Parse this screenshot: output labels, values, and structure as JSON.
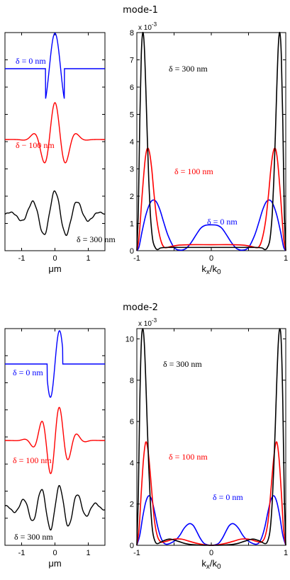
{
  "chart_data": [
    {
      "type": "line",
      "title": "mode-1",
      "xlabel": "μm",
      "ylabel": "",
      "xlim": [
        -1.5,
        1.5
      ],
      "x_ticks": [
        "-1",
        "0",
        "1"
      ],
      "y_axis_labels": "none",
      "series": [
        {
          "name": "δ = 0 nm",
          "color": "#0000ff",
          "profile": {
            "half_width": 0.28,
            "kx": 9.2,
            "window": "truncated"
          }
        },
        {
          "name": "δ = 100 nm",
          "color": "#ff0000",
          "profile": {
            "sigma": 0.34,
            "kx": 9.2,
            "window": "gaussian"
          }
        },
        {
          "name": "δ = 300 nm",
          "color": "#000000",
          "profile": {
            "sigma": 0.62,
            "kx": 9.2,
            "window": "gaussian"
          }
        }
      ],
      "annotations": [
        "δ = 0 nm",
        "δ − 100 nm",
        "δ = 300 nm"
      ]
    },
    {
      "type": "line",
      "title": "",
      "xlabel": "kx/k0",
      "ylabel": "",
      "exponent_label": "x 10",
      "exponent_power": "-3",
      "xlim": [
        -1,
        1
      ],
      "ylim": [
        0,
        8
      ],
      "x_ticks": [
        "-1",
        "-0.5",
        "0",
        "0.5",
        "1"
      ],
      "x_tick_labels": [
        "-1",
        "",
        "0",
        "",
        "1"
      ],
      "y_ticks": [
        "0",
        "1",
        "2",
        "3",
        "4",
        "5",
        "6",
        "7",
        "8"
      ],
      "series": [
        {
          "name": "δ = 0 nm",
          "color": "#0000ff",
          "x": [
            -1.0,
            -0.97,
            -0.93,
            -0.88,
            -0.83,
            -0.79,
            -0.74,
            -0.69,
            -0.64,
            -0.58,
            -0.5,
            -0.42,
            -0.34,
            -0.27,
            -0.2,
            -0.14,
            -0.08,
            0.0,
            0.08,
            0.14,
            0.2,
            0.27,
            0.34,
            0.42,
            0.5,
            0.58,
            0.64,
            0.69,
            0.74,
            0.79,
            0.83,
            0.88,
            0.93,
            0.97,
            1.0
          ],
          "y": [
            0.0,
            0.15,
            0.7,
            1.3,
            1.7,
            1.85,
            1.8,
            1.5,
            1.05,
            0.55,
            0.12,
            0.02,
            0.08,
            0.3,
            0.6,
            0.83,
            0.93,
            0.95,
            0.93,
            0.83,
            0.6,
            0.3,
            0.08,
            0.02,
            0.12,
            0.55,
            1.05,
            1.5,
            1.8,
            1.85,
            1.7,
            1.3,
            0.7,
            0.15,
            0.0
          ]
        },
        {
          "name": "δ = 100 nm",
          "color": "#ff0000",
          "x": [
            -1.0,
            -0.97,
            -0.93,
            -0.89,
            -0.86,
            -0.83,
            -0.8,
            -0.77,
            -0.73,
            -0.68,
            -0.63,
            -0.55,
            -0.45,
            -0.3,
            0.0,
            0.3,
            0.45,
            0.55,
            0.63,
            0.68,
            0.73,
            0.77,
            0.8,
            0.83,
            0.86,
            0.89,
            0.93,
            0.97,
            1.0
          ],
          "y": [
            0.0,
            0.5,
            2.0,
            3.3,
            3.75,
            3.6,
            3.0,
            2.1,
            1.1,
            0.4,
            0.12,
            0.15,
            0.2,
            0.22,
            0.22,
            0.22,
            0.2,
            0.15,
            0.12,
            0.4,
            1.1,
            2.1,
            3.0,
            3.6,
            3.75,
            3.3,
            2.0,
            0.5,
            0.0
          ]
        },
        {
          "name": "δ = 300 nm",
          "color": "#000000",
          "x": [
            -1.0,
            -0.98,
            -0.96,
            -0.94,
            -0.92,
            -0.9,
            -0.88,
            -0.86,
            -0.84,
            -0.82,
            -0.8,
            -0.78,
            -0.75,
            -0.72,
            -0.68,
            -0.6,
            -0.4,
            0.0,
            0.4,
            0.6,
            0.68,
            0.72,
            0.75,
            0.78,
            0.8,
            0.82,
            0.84,
            0.86,
            0.88,
            0.9,
            0.92,
            0.94,
            0.96,
            0.98,
            1.0
          ],
          "y": [
            0.0,
            1.5,
            4.8,
            7.2,
            8.0,
            7.5,
            6.0,
            4.2,
            2.6,
            1.4,
            0.7,
            0.3,
            0.1,
            0.04,
            0.1,
            0.12,
            0.12,
            0.12,
            0.12,
            0.12,
            0.1,
            0.04,
            0.1,
            0.3,
            0.7,
            1.4,
            2.6,
            4.2,
            6.0,
            7.5,
            8.0,
            7.2,
            4.8,
            1.5,
            0.0
          ]
        }
      ],
      "annotations": [
        "δ = 300 nm",
        "δ = 100 nm",
        "δ = 0 nm"
      ]
    },
    {
      "type": "line",
      "title": "mode-2",
      "xlabel": "μm",
      "ylabel": "",
      "xlim": [
        -1.5,
        1.5
      ],
      "x_ticks": [
        "-1",
        "0",
        "1"
      ],
      "y_axis_labels": "none",
      "series": [
        {
          "name": "δ = 0 nm",
          "color": "#0000ff",
          "profile": {
            "half_width": 0.23,
            "kx": 11.5,
            "window": "truncated",
            "parity": "odd"
          }
        },
        {
          "name": "δ = 100 nm",
          "color": "#ff0000",
          "profile": {
            "sigma": 0.36,
            "kx": 11.5,
            "window": "gaussian",
            "parity": "odd"
          }
        },
        {
          "name": "δ = 300 nm",
          "color": "#000000",
          "profile": {
            "sigma": 0.68,
            "kx": 11.5,
            "window": "gaussian",
            "parity": "odd"
          }
        }
      ],
      "annotations": [
        "δ = 0 nm",
        "δ = 100 nm",
        "δ = 300 nm"
      ]
    },
    {
      "type": "line",
      "title": "",
      "xlabel": "kx/k0",
      "ylabel": "",
      "exponent_label": "x 10",
      "exponent_power": "-3",
      "xlim": [
        -1,
        1
      ],
      "ylim": [
        0,
        10.5
      ],
      "x_ticks": [
        "-1",
        "-0.5",
        "0",
        "0.5",
        "1"
      ],
      "x_tick_labels": [
        "-1",
        "",
        "0",
        "",
        "1"
      ],
      "y_ticks": [
        "0",
        "2",
        "4",
        "6",
        "8",
        "10"
      ],
      "series": [
        {
          "name": "δ = 0 nm",
          "color": "#0000ff",
          "x": [
            -1.0,
            -0.96,
            -0.92,
            -0.88,
            -0.84,
            -0.8,
            -0.76,
            -0.72,
            -0.68,
            -0.64,
            -0.6,
            -0.55,
            -0.48,
            -0.42,
            -0.37,
            -0.32,
            -0.28,
            -0.24,
            -0.2,
            -0.15,
            -0.1,
            -0.05,
            0.0,
            0.05,
            0.1,
            0.15,
            0.2,
            0.24,
            0.28,
            0.32,
            0.37,
            0.42,
            0.48,
            0.55,
            0.6,
            0.64,
            0.68,
            0.72,
            0.76,
            0.8,
            0.84,
            0.88,
            0.92,
            0.96,
            1.0
          ],
          "y": [
            0.0,
            0.5,
            1.4,
            2.1,
            2.4,
            2.2,
            1.6,
            0.9,
            0.4,
            0.12,
            0.05,
            0.1,
            0.25,
            0.5,
            0.8,
            1.0,
            1.05,
            0.95,
            0.7,
            0.35,
            0.1,
            0.02,
            0.0,
            0.02,
            0.1,
            0.35,
            0.7,
            0.95,
            1.05,
            1.0,
            0.8,
            0.5,
            0.25,
            0.1,
            0.05,
            0.12,
            0.4,
            0.9,
            1.6,
            2.2,
            2.4,
            2.1,
            1.4,
            0.5,
            0.0
          ]
        },
        {
          "name": "δ = 100 nm",
          "color": "#ff0000",
          "x": [
            -1.0,
            -0.97,
            -0.94,
            -0.91,
            -0.88,
            -0.85,
            -0.82,
            -0.79,
            -0.76,
            -0.72,
            -0.67,
            -0.6,
            -0.5,
            -0.4,
            -0.3,
            -0.2,
            -0.1,
            0.0,
            0.1,
            0.2,
            0.3,
            0.4,
            0.5,
            0.6,
            0.67,
            0.72,
            0.76,
            0.79,
            0.82,
            0.85,
            0.88,
            0.91,
            0.94,
            0.97,
            1.0
          ],
          "y": [
            0.0,
            0.8,
            2.6,
            4.2,
            5.0,
            4.6,
            3.5,
            2.2,
            1.1,
            0.4,
            0.15,
            0.2,
            0.3,
            0.3,
            0.2,
            0.1,
            0.03,
            0.0,
            0.03,
            0.1,
            0.2,
            0.3,
            0.3,
            0.2,
            0.15,
            0.4,
            1.1,
            2.2,
            3.5,
            4.6,
            5.0,
            4.2,
            2.6,
            0.8,
            0.0
          ]
        },
        {
          "name": "δ = 300 nm",
          "color": "#000000",
          "x": [
            -1.0,
            -0.98,
            -0.96,
            -0.94,
            -0.92,
            -0.9,
            -0.88,
            -0.86,
            -0.84,
            -0.82,
            -0.8,
            -0.78,
            -0.75,
            -0.72,
            -0.68,
            -0.62,
            -0.55,
            -0.45,
            -0.3,
            0.0,
            0.3,
            0.45,
            0.55,
            0.62,
            0.68,
            0.72,
            0.75,
            0.78,
            0.8,
            0.82,
            0.84,
            0.86,
            0.88,
            0.9,
            0.92,
            0.94,
            0.96,
            0.98,
            1.0
          ],
          "y": [
            0.0,
            2.5,
            7.0,
            9.8,
            10.5,
            9.8,
            8.0,
            5.8,
            3.8,
            2.2,
            1.1,
            0.5,
            0.15,
            0.08,
            0.15,
            0.25,
            0.3,
            0.2,
            0.05,
            0.0,
            0.05,
            0.2,
            0.3,
            0.25,
            0.15,
            0.08,
            0.15,
            0.5,
            1.1,
            2.2,
            3.8,
            5.8,
            8.0,
            9.8,
            10.5,
            9.8,
            7.0,
            2.5,
            0.0
          ]
        }
      ],
      "annotations": [
        "δ = 300 nm",
        "δ = 100 nm",
        "δ = 0 nm"
      ]
    }
  ]
}
